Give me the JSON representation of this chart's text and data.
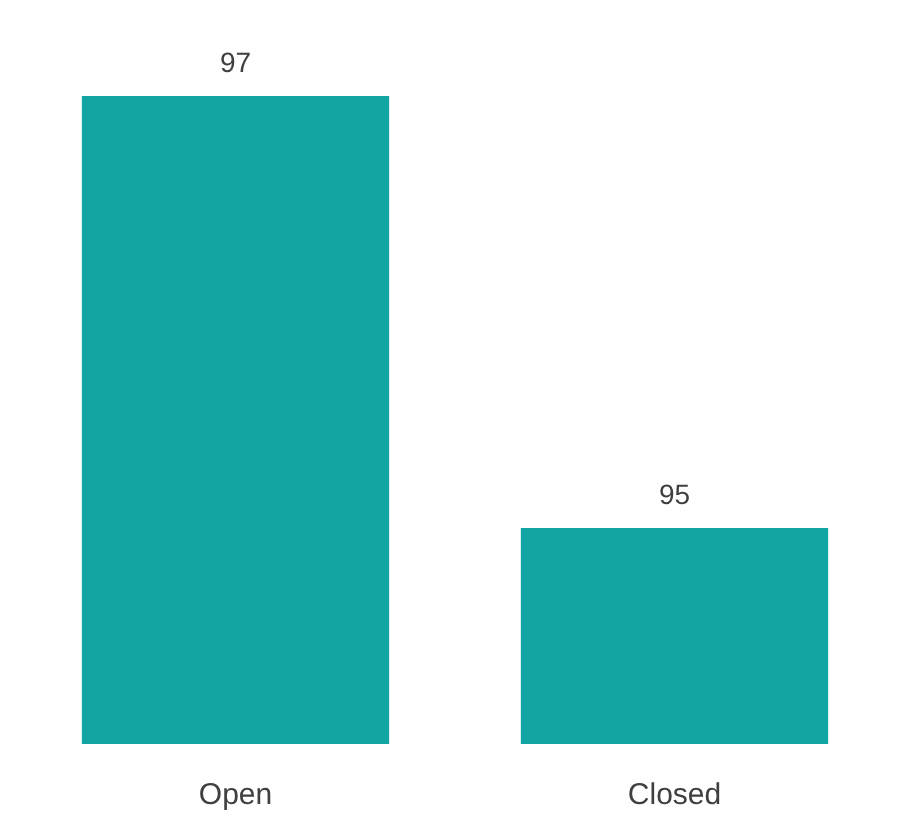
{
  "chart_data": {
    "type": "bar",
    "categories": [
      "Open",
      "Closed"
    ],
    "values": [
      97,
      95
    ],
    "color": "#13a4a4",
    "ylim": [
      94,
      97
    ],
    "data_labels": true,
    "tick_labels": "x"
  }
}
